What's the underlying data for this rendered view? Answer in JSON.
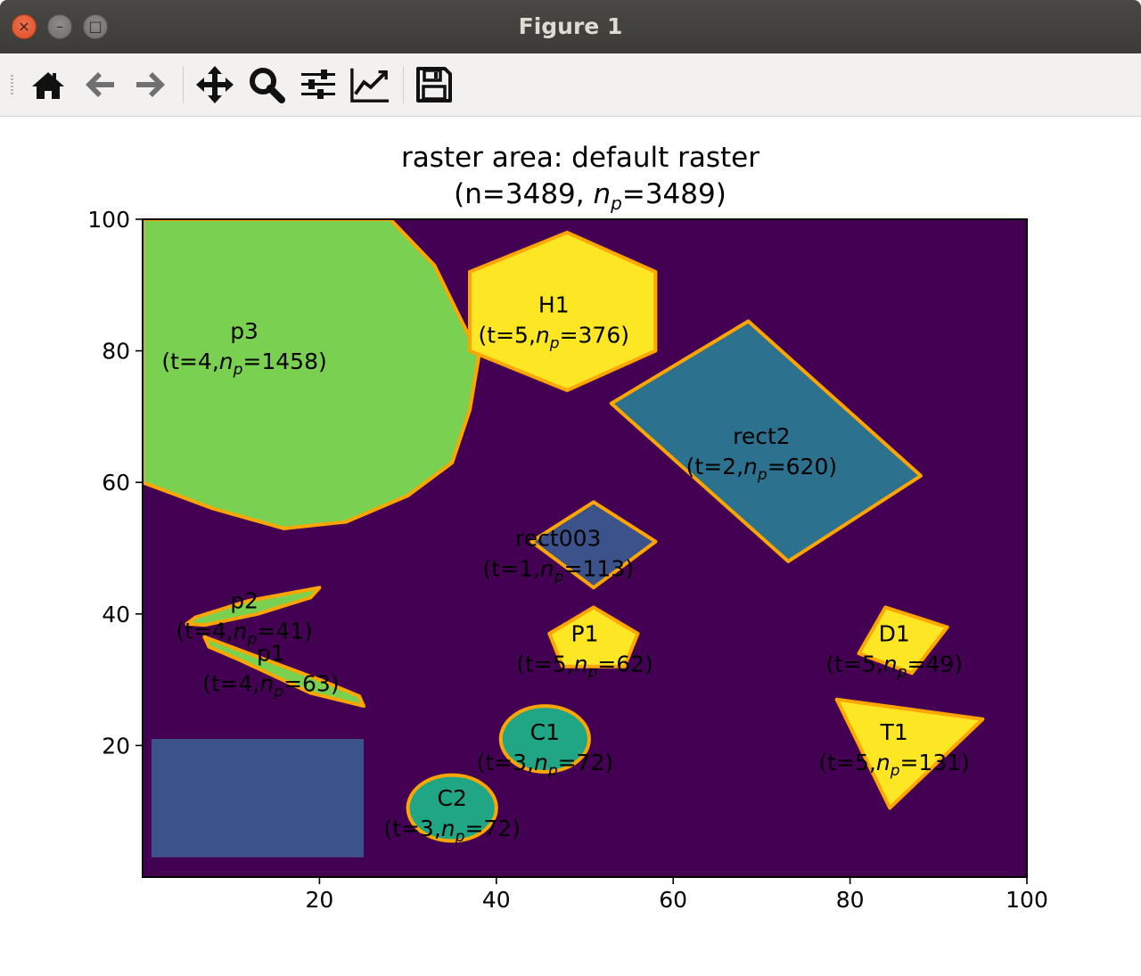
{
  "window": {
    "title": "Figure 1",
    "controls": {
      "close": "×",
      "minimize": "–",
      "maximize": "□"
    }
  },
  "toolbar": {
    "buttons": [
      {
        "name": "home-icon",
        "tooltip": "Home"
      },
      {
        "name": "back-icon",
        "tooltip": "Back"
      },
      {
        "name": "forward-icon",
        "tooltip": "Forward"
      },
      {
        "name": "pan-icon",
        "tooltip": "Pan"
      },
      {
        "name": "zoom-icon",
        "tooltip": "Zoom"
      },
      {
        "name": "subplots-icon",
        "tooltip": "Subplots"
      },
      {
        "name": "customize-icon",
        "tooltip": "Customize"
      },
      {
        "name": "save-icon",
        "tooltip": "Save"
      }
    ]
  },
  "colors": {
    "background": "#440154",
    "t1": "#3b528b",
    "t2": "#2c728e",
    "t3": "#21a685",
    "t4": "#7ad151",
    "t5": "#fde725",
    "outline": "#ffa500"
  },
  "chart_data": {
    "type": "heatmap",
    "title_line1": "raster area: default raster",
    "title_line2_prefix": "(n=3489, ",
    "title_line2_sym": "n",
    "title_line2_sub": "p",
    "title_line2_suffix": "=3489)",
    "xlim": [
      0,
      100
    ],
    "ylim": [
      0,
      100
    ],
    "xticks": [
      "20",
      "40",
      "60",
      "80",
      "100"
    ],
    "yticks": [
      "20",
      "40",
      "60",
      "80",
      "100"
    ],
    "xtick_values": [
      20,
      40,
      60,
      80,
      100
    ],
    "ytick_values": [
      20,
      40,
      60,
      80,
      100
    ],
    "rect_unlabeled": {
      "x0": 1,
      "y0": 3,
      "x1": 25,
      "y1": 21,
      "t": 1
    },
    "regions": [
      {
        "id": "p3",
        "name": "p3",
        "t": 4,
        "np": 1458,
        "points": [
          [
            0,
            100
          ],
          [
            28,
            100
          ],
          [
            33,
            93
          ],
          [
            37,
            82
          ],
          [
            38,
            79
          ],
          [
            37,
            71
          ],
          [
            35,
            63
          ],
          [
            30,
            58
          ],
          [
            23,
            54
          ],
          [
            16,
            53
          ],
          [
            8,
            56
          ],
          [
            0,
            60
          ]
        ],
        "label_at": [
          11.5,
          80.5
        ]
      },
      {
        "id": "H1",
        "name": "H1",
        "t": 5,
        "np": 376,
        "points": [
          [
            37,
            92
          ],
          [
            48,
            98
          ],
          [
            58,
            92
          ],
          [
            58,
            80
          ],
          [
            48,
            74
          ],
          [
            37,
            80
          ]
        ],
        "label_at": [
          46.5,
          84.5
        ]
      },
      {
        "id": "rect2",
        "name": "rect2",
        "t": 2,
        "np": 620,
        "points": [
          [
            53,
            72
          ],
          [
            68.5,
            84.5
          ],
          [
            88,
            61
          ],
          [
            73,
            48
          ]
        ],
        "label_at": [
          70,
          64.5
        ]
      },
      {
        "id": "rect003",
        "name": "rect003",
        "t": 1,
        "np": 113,
        "points": [
          [
            44,
            51
          ],
          [
            51,
            57
          ],
          [
            58,
            51
          ],
          [
            51,
            44
          ]
        ],
        "label_at": [
          47,
          49
        ]
      },
      {
        "id": "p2",
        "name": "p2",
        "t": 4,
        "np": 41,
        "points": [
          [
            5,
            38.5
          ],
          [
            6,
            39.5
          ],
          [
            12,
            42
          ],
          [
            18,
            43.5
          ],
          [
            20,
            44
          ],
          [
            19,
            42.5
          ],
          [
            13,
            40
          ],
          [
            7,
            38.3
          ]
        ],
        "label_at": [
          11.5,
          39.5
        ]
      },
      {
        "id": "p1",
        "name": "p1",
        "t": 4,
        "np": 63,
        "points": [
          [
            7,
            36.5
          ],
          [
            7.5,
            35
          ],
          [
            11,
            33
          ],
          [
            19,
            28
          ],
          [
            25,
            26
          ],
          [
            24.5,
            27.5
          ],
          [
            20,
            30
          ],
          [
            14,
            33
          ],
          [
            9,
            35.5
          ]
        ],
        "label_at": [
          14.5,
          31.5
        ]
      },
      {
        "id": "P1",
        "name": "P1",
        "t": 5,
        "np": 62,
        "points": [
          [
            46,
            37
          ],
          [
            51,
            41
          ],
          [
            56,
            37
          ],
          [
            54.5,
            32
          ],
          [
            47.5,
            32
          ]
        ],
        "label_at": [
          50,
          34.5
        ]
      },
      {
        "id": "D1",
        "name": "D1",
        "t": 5,
        "np": 49,
        "points": [
          [
            81,
            34
          ],
          [
            84,
            41
          ],
          [
            91,
            38
          ],
          [
            87,
            31
          ]
        ],
        "label_at": [
          85,
          34.5
        ]
      },
      {
        "id": "C1",
        "name": "C1",
        "t": 3,
        "np": 72,
        "ellipse": {
          "cx": 45.5,
          "cy": 21,
          "rx": 5,
          "ry": 5
        },
        "label_at": [
          45.5,
          19.5
        ]
      },
      {
        "id": "C2",
        "name": "C2",
        "t": 3,
        "np": 72,
        "ellipse": {
          "cx": 35,
          "cy": 10.5,
          "rx": 5,
          "ry": 5
        },
        "label_at": [
          35,
          9.5
        ]
      },
      {
        "id": "T1",
        "name": "T1",
        "t": 5,
        "np": 131,
        "points": [
          [
            78.5,
            27
          ],
          [
            95,
            24
          ],
          [
            84.5,
            10.5
          ]
        ],
        "label_at": [
          85,
          19.5
        ]
      }
    ]
  }
}
